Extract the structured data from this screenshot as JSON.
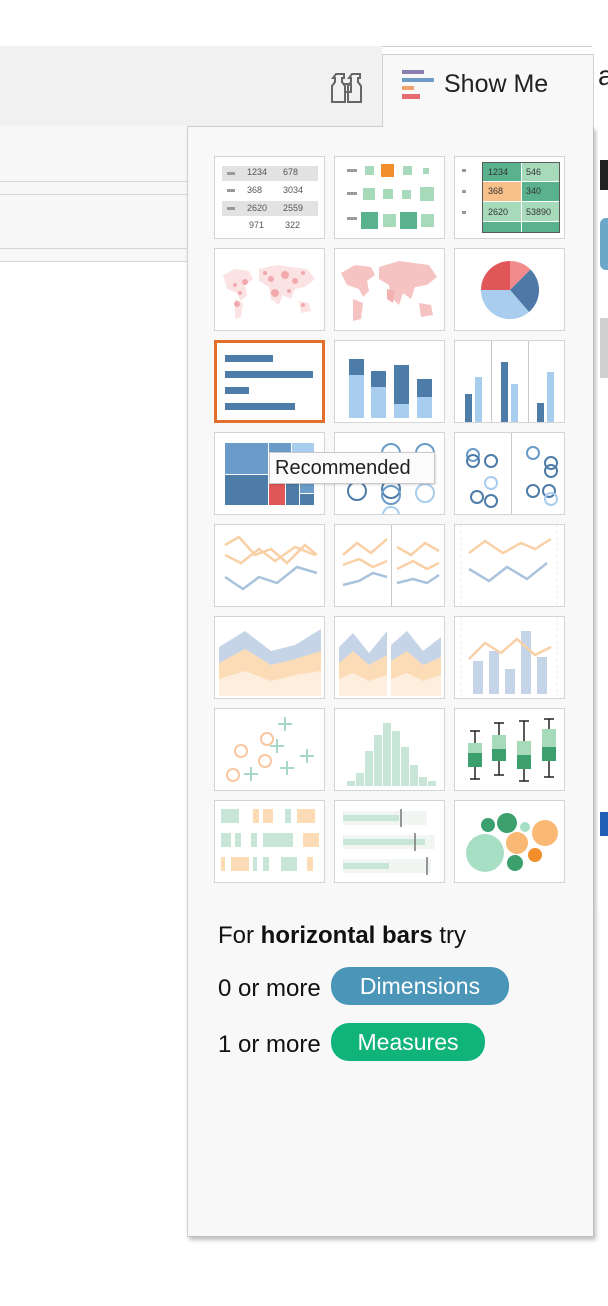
{
  "showme": {
    "tab_label": "Show Me"
  },
  "tooltip": "Recommended",
  "text_table": {
    "rows": [
      [
        "1234",
        "678"
      ],
      [
        "368",
        "3034"
      ],
      [
        "2620",
        "2559"
      ],
      [
        "971",
        "322"
      ]
    ]
  },
  "highlight_table": {
    "rows": [
      [
        "1234",
        "546"
      ],
      [
        "368",
        "340"
      ],
      [
        "2620",
        "53890"
      ]
    ]
  },
  "guide": {
    "prefix": "For ",
    "chart_name": "horizontal bars",
    "suffix": " try",
    "dimensions_count": "0 or more",
    "dimensions_label": "Dimensions",
    "measures_count": "1 or more",
    "measures_label": "Measures"
  },
  "colors": {
    "selected_border": "#e36f2c",
    "dimensions": "#4b95b8",
    "measures": "#10b47a"
  }
}
